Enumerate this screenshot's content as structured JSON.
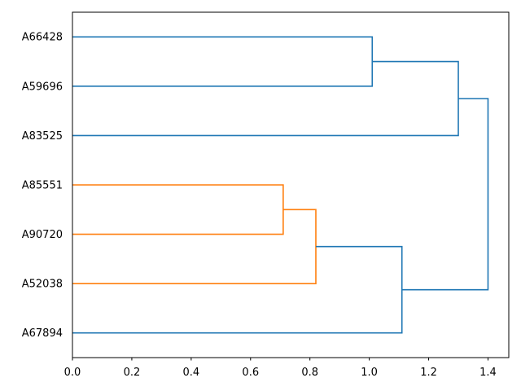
{
  "figure": {
    "background": "#ffffff",
    "plot_background": "#ffffff",
    "spine_color": "#000000",
    "text_color": "#000000"
  },
  "chart_data": {
    "type": "dendrogram",
    "orientation": "root-right",
    "title": "",
    "xlabel": "",
    "ylabel": "",
    "leaves": [
      "A66428",
      "A59696",
      "A83525",
      "A85551",
      "A90720",
      "A52038",
      "A67894"
    ],
    "links": [
      {
        "a": "A66428",
        "b": "A59696",
        "distance": 1.01,
        "color": "#1f77b4"
      },
      {
        "a": "merge-0",
        "b": "A83525",
        "distance": 1.3,
        "color": "#1f77b4"
      },
      {
        "a": "A85551",
        "b": "A90720",
        "distance": 0.71,
        "color": "#ff7f0e"
      },
      {
        "a": "merge-2",
        "b": "A52038",
        "distance": 0.82,
        "color": "#ff7f0e"
      },
      {
        "a": "merge-3",
        "b": "A67894",
        "distance": 1.11,
        "color": "#1f77b4"
      },
      {
        "a": "merge-1",
        "b": "merge-4",
        "distance": 1.4,
        "color": "#1f77b4"
      }
    ],
    "x_ticks": [
      0.0,
      0.2,
      0.4,
      0.6,
      0.8,
      1.0,
      1.2,
      1.4
    ],
    "x_tick_labels": [
      "0.0",
      "0.2",
      "0.4",
      "0.6",
      "0.8",
      "1.0",
      "1.2",
      "1.4"
    ],
    "xlim": [
      0,
      1.47
    ],
    "grid": false,
    "legend": null,
    "line_width": 1.6,
    "colors": {
      "above_threshold": "#1f77b4",
      "cluster_1": "#ff7f0e"
    }
  }
}
